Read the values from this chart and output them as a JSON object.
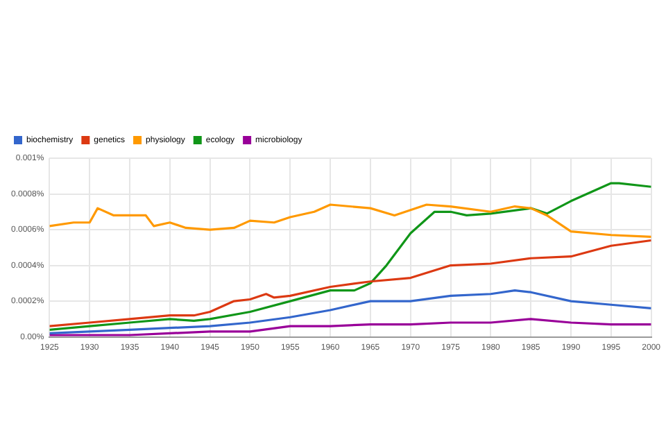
{
  "chart_data": {
    "type": "line",
    "legend": "top left",
    "grid": true,
    "marker": "none",
    "line_style": "solid",
    "xlim": [
      1925,
      2000
    ],
    "xticks": [
      1925,
      1930,
      1935,
      1940,
      1945,
      1950,
      1955,
      1960,
      1965,
      1970,
      1975,
      1980,
      1985,
      1990,
      1995,
      2000
    ],
    "ylim": [
      0,
      0.001
    ],
    "yticks": [
      {
        "value": 0,
        "label": "0.00%"
      },
      {
        "value": 0.0002,
        "label": "0.0002%"
      },
      {
        "value": 0.0004,
        "label": "0.0004%"
      },
      {
        "value": 0.0006,
        "label": "0.0006%"
      },
      {
        "value": 0.0008,
        "label": "0.0008%"
      },
      {
        "value": 0.001,
        "label": "0.001%"
      }
    ],
    "series": [
      {
        "name": "biochemistry",
        "color": "#3366cc",
        "x": [
          1925,
          1930,
          1935,
          1940,
          1945,
          1950,
          1955,
          1960,
          1965,
          1970,
          1975,
          1980,
          1983,
          1985,
          1990,
          1995,
          2000
        ],
        "values": [
          2e-05,
          3e-05,
          4e-05,
          5e-05,
          6e-05,
          8e-05,
          0.00011,
          0.00015,
          0.0002,
          0.0002,
          0.00023,
          0.00024,
          0.00026,
          0.00025,
          0.0002,
          0.00018,
          0.00016
        ]
      },
      {
        "name": "genetics",
        "color": "#dc3912",
        "x": [
          1925,
          1930,
          1935,
          1940,
          1943,
          1945,
          1948,
          1950,
          1952,
          1953,
          1955,
          1960,
          1965,
          1970,
          1975,
          1980,
          1985,
          1990,
          1995,
          2000
        ],
        "values": [
          6e-05,
          8e-05,
          0.0001,
          0.00012,
          0.00012,
          0.00014,
          0.0002,
          0.00021,
          0.00024,
          0.00022,
          0.00023,
          0.00028,
          0.00031,
          0.00033,
          0.0004,
          0.00041,
          0.00044,
          0.00045,
          0.00051,
          0.00054
        ]
      },
      {
        "name": "physiology",
        "color": "#ff9900",
        "x": [
          1925,
          1928,
          1930,
          1931,
          1933,
          1937,
          1938,
          1940,
          1942,
          1945,
          1948,
          1950,
          1953,
          1955,
          1958,
          1960,
          1965,
          1968,
          1972,
          1975,
          1980,
          1983,
          1985,
          1987,
          1990,
          1995,
          2000
        ],
        "values": [
          0.00062,
          0.00064,
          0.00064,
          0.00072,
          0.00068,
          0.00068,
          0.00062,
          0.00064,
          0.00061,
          0.0006,
          0.00061,
          0.00065,
          0.00064,
          0.00067,
          0.0007,
          0.00074,
          0.00072,
          0.00068,
          0.00074,
          0.00073,
          0.0007,
          0.00073,
          0.00072,
          0.00068,
          0.00059,
          0.00057,
          0.00056
        ]
      },
      {
        "name": "ecology",
        "color": "#109618",
        "x": [
          1925,
          1930,
          1935,
          1940,
          1943,
          1945,
          1950,
          1955,
          1960,
          1963,
          1965,
          1967,
          1970,
          1973,
          1975,
          1977,
          1980,
          1985,
          1987,
          1990,
          1995,
          1996,
          2000
        ],
        "values": [
          4e-05,
          6e-05,
          8e-05,
          0.0001,
          9e-05,
          0.0001,
          0.00014,
          0.0002,
          0.00026,
          0.00026,
          0.0003,
          0.0004,
          0.00058,
          0.0007,
          0.0007,
          0.00068,
          0.00069,
          0.00072,
          0.00069,
          0.00076,
          0.00086,
          0.00086,
          0.00084
        ]
      },
      {
        "name": "microbiology",
        "color": "#990099",
        "x": [
          1925,
          1930,
          1935,
          1940,
          1945,
          1950,
          1955,
          1960,
          1965,
          1970,
          1975,
          1980,
          1985,
          1990,
          1995,
          2000
        ],
        "values": [
          1e-05,
          1e-05,
          1e-05,
          2e-05,
          3e-05,
          3e-05,
          6e-05,
          6e-05,
          7e-05,
          7e-05,
          8e-05,
          8e-05,
          0.0001,
          8e-05,
          7e-05,
          7e-05
        ]
      }
    ]
  }
}
